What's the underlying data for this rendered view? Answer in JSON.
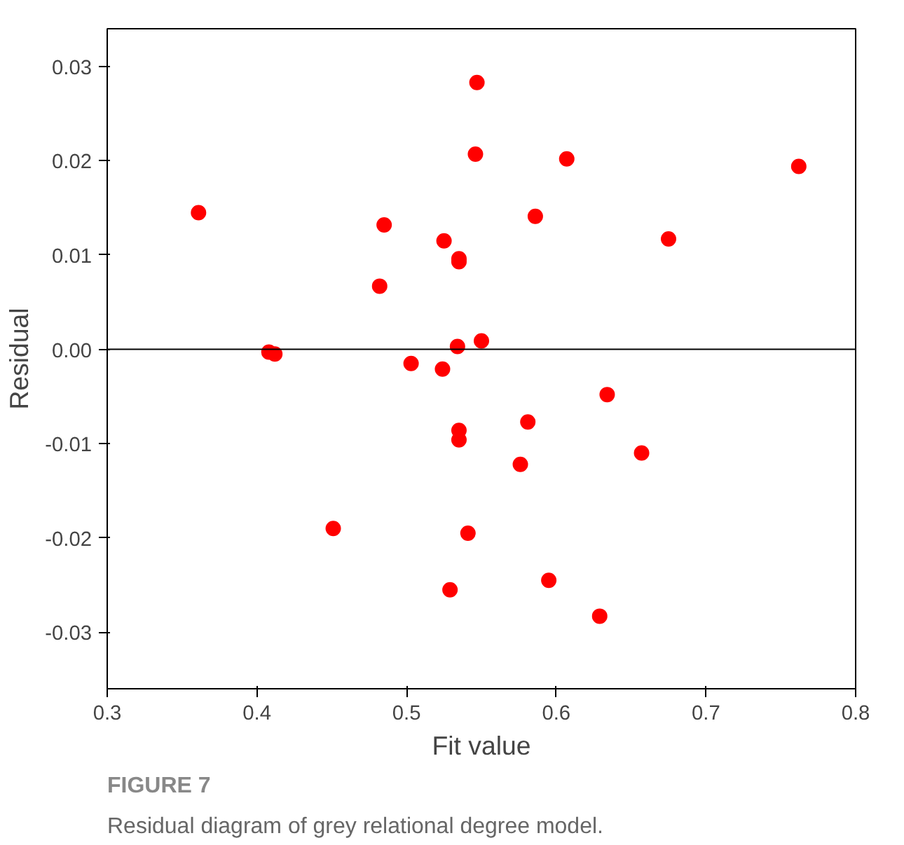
{
  "chart_data": {
    "type": "scatter",
    "title": "FIGURE 7",
    "subtitle": "Residual diagram of grey relational degree model.",
    "xlabel": "Fit value",
    "ylabel": "Residual",
    "x": [
      0.361,
      0.547,
      0.546,
      0.607,
      0.762,
      0.485,
      0.525,
      0.535,
      0.535,
      0.586,
      0.675,
      0.482,
      0.408,
      0.412,
      0.503,
      0.524,
      0.534,
      0.55,
      0.634,
      0.581,
      0.535,
      0.535,
      0.576,
      0.657,
      0.451,
      0.541,
      0.595,
      0.529,
      0.629
    ],
    "series": [
      {
        "color": "#ff0000",
        "values": [
          0.0145,
          0.0283,
          0.0207,
          0.0202,
          0.0194,
          0.0132,
          0.0115,
          0.0096,
          0.0093,
          0.0141,
          0.0117,
          0.0067,
          -0.0003,
          -0.0005,
          -0.0015,
          -0.0021,
          0.0003,
          0.0009,
          -0.0048,
          -0.0077,
          -0.0086,
          -0.0096,
          -0.0122,
          -0.011,
          -0.019,
          -0.0195,
          -0.0245,
          -0.0255,
          -0.0283
        ]
      }
    ],
    "xlim": [
      0.3,
      0.8
    ],
    "xticks": [
      0.3,
      0.4,
      0.5,
      0.6,
      0.7,
      0.8
    ],
    "ylim": [
      -0.036,
      0.034
    ],
    "yticks": [
      {
        "value": -0.03,
        "label": "-0.03"
      },
      {
        "value": -0.02,
        "label": "-0.02"
      },
      {
        "value": -0.01,
        "label": "-0.01"
      },
      {
        "value": 0,
        "label": "0.00"
      },
      {
        "value": 0.01,
        "label": "0.01"
      },
      {
        "value": 0.02,
        "label": "0.02"
      },
      {
        "value": 0.03,
        "label": "0.03"
      }
    ],
    "ref_lines": [
      {
        "axis": "y",
        "value": 0,
        "color": "#000000"
      }
    ],
    "marker": "circle",
    "grid": false
  }
}
